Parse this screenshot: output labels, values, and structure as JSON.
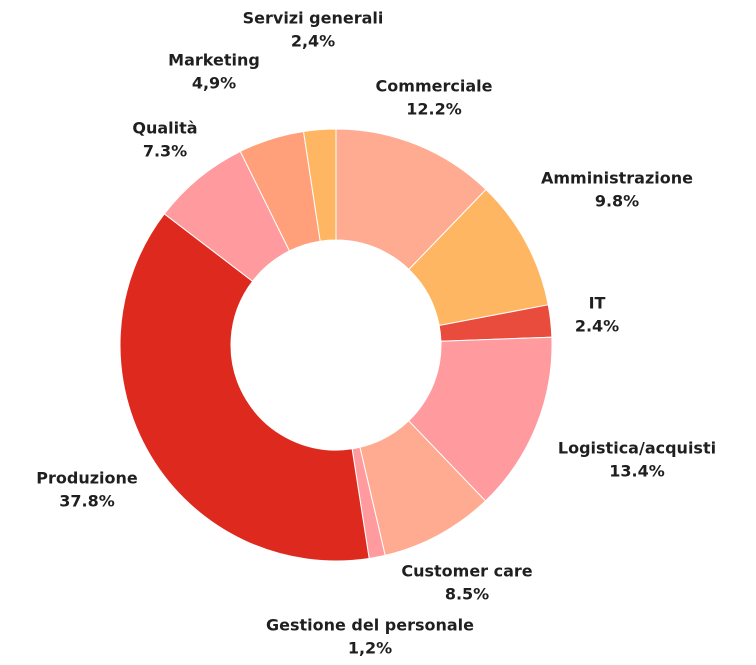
{
  "chart_data": {
    "type": "donut",
    "categories": [
      "Commerciale",
      "Amministrazione",
      "IT",
      "Logistica/acquisti",
      "Customer care",
      "Gestione del personale",
      "Produzione",
      "Qualità",
      "Marketing",
      "Servizi generali"
    ],
    "values": [
      12.2,
      9.8,
      2.4,
      13.4,
      8.5,
      1.2,
      37.8,
      7.3,
      4.9,
      2.4
    ],
    "value_labels": [
      "12.2%",
      "9.8%",
      "2.4%",
      "13.4%",
      "8.5%",
      "1,2%",
      "37.8%",
      "7.3%",
      "4,9%",
      "2,4%"
    ],
    "colors": [
      "#ffab91",
      "#ffb662",
      "#e94b3c",
      "#ff9a9e",
      "#ffab91",
      "#ff9a9e",
      "#de2a1e",
      "#ff9a9e",
      "#ffa07a",
      "#ffb662"
    ]
  }
}
